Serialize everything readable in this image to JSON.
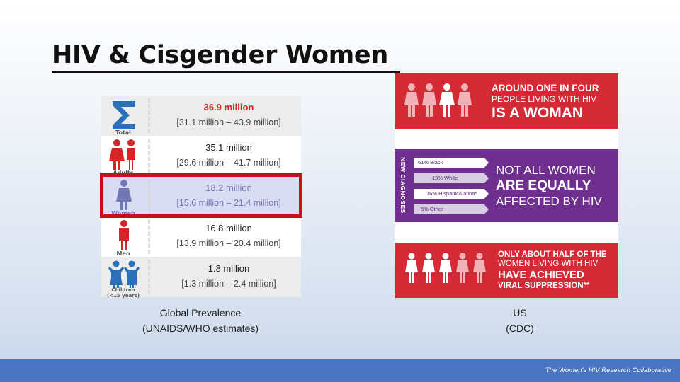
{
  "title": "HIV & Cisgender Women",
  "left": {
    "rows": [
      {
        "label": "Total",
        "value": "36.9 million",
        "range": "[31.1 million – 43.9 million]",
        "icon": "sigma-icon",
        "color": "#2a6fb8"
      },
      {
        "label": "Adults",
        "value": "35.1 million",
        "range": "[29.6 million – 41.7 million]",
        "icon": "adults-icon",
        "color": "#d42626"
      },
      {
        "label": "Women",
        "value": "18.2 million",
        "range": "[15.6 million – 21.4 million]",
        "icon": "woman-icon",
        "color": "#7278b6"
      },
      {
        "label": "Men",
        "value": "16.8 million",
        "range": "[13.9 million – 20.4 million]",
        "icon": "man-icon",
        "color": "#d42626"
      },
      {
        "label": "Children",
        "label2": "(<15 years)",
        "value": "1.8 million",
        "range": "[1.3 million – 2.4 million]",
        "icon": "children-icon",
        "color": "#2a6fb8"
      }
    ],
    "caption_line1": "Global Prevalence",
    "caption_line2": "(UNAIDS/WHO estimates)"
  },
  "right": {
    "top_line1": "AROUND ONE IN FOUR",
    "top_line2": "PEOPLE LIVING WITH HIV",
    "top_line3": "IS A WOMAN",
    "vertical_label": "NEW DIAGNOSES",
    "race_bars": [
      {
        "label": "61% Black",
        "pct": 61
      },
      {
        "label": "19% White",
        "pct": 19
      },
      {
        "label": "16% Hispanic/Latina*",
        "pct": 16
      },
      {
        "label": "5% Other",
        "pct": 5
      }
    ],
    "mid_line1": "NOT ALL WOMEN",
    "mid_line2": "ARE EQUALLY",
    "mid_line3": "AFFECTED BY HIV",
    "bot_line1": "ONLY ABOUT HALF OF THE",
    "bot_line2": "WOMEN LIVING WITH HIV",
    "bot_line3": "HAVE ACHIEVED",
    "bot_line4": "VIRAL SUPPRESSION**",
    "caption_line1": "US",
    "caption_line2": "(CDC)"
  },
  "footer": {
    "credit": "The Women's HIV Research Collaborative",
    "bar_color": "#4a75c2"
  }
}
